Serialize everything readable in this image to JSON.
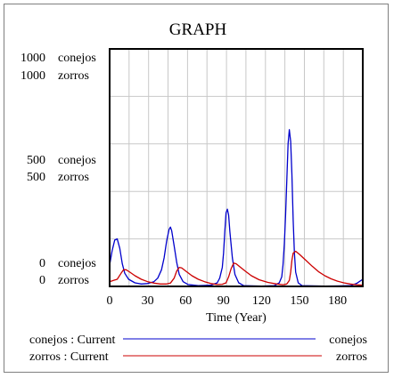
{
  "chart_data": {
    "type": "line",
    "title": "GRAPH",
    "xlabel": "Time (Year)",
    "xlim": [
      0,
      200
    ],
    "x_ticks": [
      "0",
      "30",
      "60",
      "90",
      "120",
      "150",
      "180"
    ],
    "x_tick_values": [
      0,
      30,
      60,
      90,
      120,
      150,
      180
    ],
    "grid": true,
    "legend_position": "bottom",
    "y_axes": {
      "top": [
        "1000",
        "1000"
      ],
      "middle": [
        "500",
        "500"
      ],
      "bottom": [
        "0",
        "0"
      ],
      "units": [
        "conejos",
        "zorros"
      ]
    },
    "series": [
      {
        "name": "conejos",
        "legend_left": "conejos : Current",
        "legend_right": "conejos",
        "color": "#0000cc",
        "ylim": [
          0,
          1000
        ],
        "points": [
          [
            0,
            90
          ],
          [
            2,
            150
          ],
          [
            4,
            195
          ],
          [
            6,
            200
          ],
          [
            8,
            160
          ],
          [
            10,
            95
          ],
          [
            12,
            55
          ],
          [
            15,
            30
          ],
          [
            20,
            15
          ],
          [
            25,
            10
          ],
          [
            30,
            12
          ],
          [
            35,
            20
          ],
          [
            38,
            35
          ],
          [
            41,
            70
          ],
          [
            43,
            120
          ],
          [
            45,
            190
          ],
          [
            47,
            240
          ],
          [
            48,
            250
          ],
          [
            49,
            235
          ],
          [
            51,
            170
          ],
          [
            53,
            100
          ],
          [
            55,
            50
          ],
          [
            58,
            20
          ],
          [
            62,
            8
          ],
          [
            70,
            3
          ],
          [
            80,
            5
          ],
          [
            85,
            15
          ],
          [
            87,
            35
          ],
          [
            89,
            80
          ],
          [
            90,
            140
          ],
          [
            91,
            230
          ],
          [
            92,
            310
          ],
          [
            93,
            325
          ],
          [
            94,
            300
          ],
          [
            95,
            230
          ],
          [
            97,
            120
          ],
          [
            99,
            50
          ],
          [
            102,
            15
          ],
          [
            106,
            3
          ],
          [
            120,
            1
          ],
          [
            130,
            3
          ],
          [
            134,
            15
          ],
          [
            136,
            40
          ],
          [
            137,
            90
          ],
          [
            138,
            180
          ],
          [
            139,
            300
          ],
          [
            140,
            450
          ],
          [
            141,
            600
          ],
          [
            142,
            660
          ],
          [
            143,
            610
          ],
          [
            144,
            470
          ],
          [
            145,
            280
          ],
          [
            146,
            140
          ],
          [
            147,
            60
          ],
          [
            149,
            15
          ],
          [
            152,
            3
          ],
          [
            170,
            1
          ],
          [
            190,
            3
          ],
          [
            195,
            12
          ],
          [
            200,
            30
          ]
        ]
      },
      {
        "name": "zorros",
        "legend_left": "zorros : Current",
        "legend_right": "zorros",
        "color": "#cc0000",
        "ylim": [
          0,
          1000
        ],
        "points": [
          [
            0,
            20
          ],
          [
            3,
            25
          ],
          [
            6,
            30
          ],
          [
            9,
            55
          ],
          [
            11,
            70
          ],
          [
            13,
            70
          ],
          [
            16,
            60
          ],
          [
            20,
            45
          ],
          [
            25,
            30
          ],
          [
            30,
            20
          ],
          [
            35,
            14
          ],
          [
            40,
            10
          ],
          [
            45,
            10
          ],
          [
            48,
            14
          ],
          [
            51,
            35
          ],
          [
            53,
            65
          ],
          [
            55,
            80
          ],
          [
            57,
            78
          ],
          [
            60,
            65
          ],
          [
            65,
            45
          ],
          [
            70,
            30
          ],
          [
            75,
            20
          ],
          [
            80,
            12
          ],
          [
            85,
            8
          ],
          [
            89,
            9
          ],
          [
            92,
            15
          ],
          [
            94,
            40
          ],
          [
            96,
            75
          ],
          [
            98,
            98
          ],
          [
            100,
            95
          ],
          [
            103,
            82
          ],
          [
            107,
            65
          ],
          [
            112,
            45
          ],
          [
            118,
            28
          ],
          [
            125,
            17
          ],
          [
            132,
            10
          ],
          [
            137,
            7
          ],
          [
            140,
            10
          ],
          [
            142,
            25
          ],
          [
            143,
            60
          ],
          [
            144,
            110
          ],
          [
            145,
            140
          ],
          [
            147,
            148
          ],
          [
            150,
            135
          ],
          [
            155,
            110
          ],
          [
            160,
            85
          ],
          [
            165,
            62
          ],
          [
            170,
            45
          ],
          [
            175,
            32
          ],
          [
            180,
            22
          ],
          [
            185,
            15
          ],
          [
            190,
            10
          ],
          [
            195,
            7
          ],
          [
            200,
            5
          ]
        ]
      }
    ]
  }
}
